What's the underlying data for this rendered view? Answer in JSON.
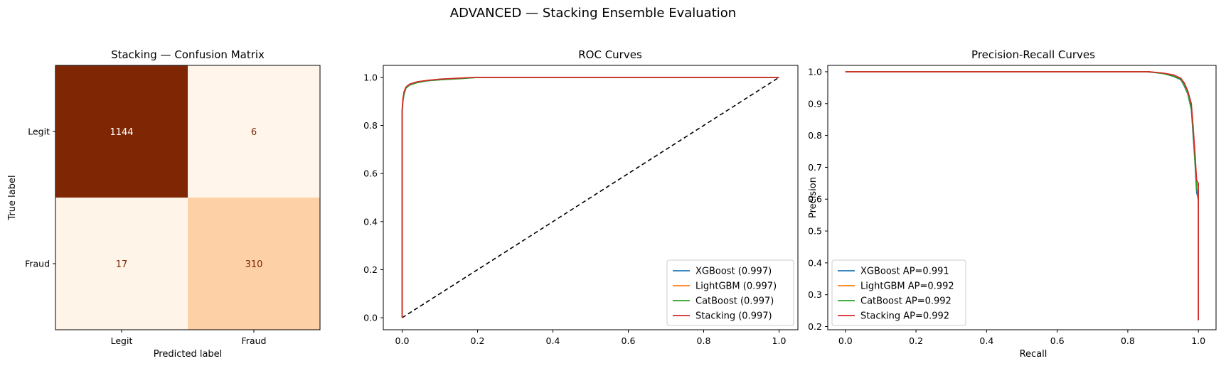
{
  "suptitle": "ADVANCED — Stacking Ensemble Evaluation",
  "chart_data": [
    {
      "type": "heatmap",
      "title": "Stacking — Confusion Matrix",
      "xlabel": "Predicted label",
      "ylabel": "True label",
      "x_categories": [
        "Legit",
        "Fraud"
      ],
      "y_categories": [
        "Legit",
        "Fraud"
      ],
      "values": [
        [
          1144,
          6
        ],
        [
          17,
          310
        ]
      ],
      "colormap": "Oranges",
      "colors": {
        "dark": "#7f2704",
        "light": "#fff5eb",
        "mid": "#fdcd9c",
        "text_dark_cell": "#ffffff",
        "text_light_cell": "#7f2704"
      }
    },
    {
      "type": "line",
      "title": "ROC Curves",
      "xlabel": "",
      "ylabel": "",
      "xlim": [
        -0.05,
        1.05
      ],
      "ylim": [
        -0.05,
        1.05
      ],
      "xticks": [
        0.0,
        0.2,
        0.4,
        0.6,
        0.8,
        1.0
      ],
      "yticks": [
        0.0,
        0.2,
        0.4,
        0.6,
        0.8,
        1.0
      ],
      "tick_labels": [
        "0.0",
        "0.2",
        "0.4",
        "0.6",
        "0.8",
        "1.0"
      ],
      "legend_position": "lower-right",
      "diagonal": {
        "x": [
          0,
          1
        ],
        "y": [
          0,
          1
        ],
        "style": "dashed",
        "color": "#000000"
      },
      "series": [
        {
          "name": "XGBoost (0.997)",
          "color": "#1f77b4",
          "x": [
            0,
            0,
            0.002,
            0.005,
            0.01,
            0.02,
            0.04,
            0.06,
            0.1,
            0.15,
            0.2,
            1.0
          ],
          "y": [
            0,
            0.85,
            0.9,
            0.93,
            0.955,
            0.97,
            0.98,
            0.985,
            0.99,
            0.995,
            1.0,
            1.0
          ]
        },
        {
          "name": "LightGBM (0.997)",
          "color": "#ff7f0e",
          "x": [
            0,
            0,
            0.002,
            0.005,
            0.01,
            0.02,
            0.04,
            0.07,
            0.1,
            0.16,
            0.2,
            1.0
          ],
          "y": [
            0,
            0.87,
            0.91,
            0.94,
            0.96,
            0.972,
            0.982,
            0.988,
            0.992,
            0.996,
            1.0,
            1.0
          ]
        },
        {
          "name": "CatBoost (0.997)",
          "color": "#2ca02c",
          "x": [
            0,
            0,
            0.002,
            0.005,
            0.01,
            0.02,
            0.04,
            0.07,
            0.1,
            0.16,
            0.2,
            1.0
          ],
          "y": [
            0,
            0.86,
            0.9,
            0.93,
            0.955,
            0.968,
            0.978,
            0.986,
            0.99,
            0.995,
            1.0,
            1.0
          ]
        },
        {
          "name": "Stacking (0.997)",
          "color": "#d62728",
          "x": [
            0,
            0,
            0.002,
            0.005,
            0.01,
            0.02,
            0.04,
            0.07,
            0.1,
            0.15,
            0.19,
            1.0
          ],
          "y": [
            0,
            0.86,
            0.91,
            0.94,
            0.96,
            0.972,
            0.982,
            0.988,
            0.993,
            0.997,
            1.0,
            1.0
          ]
        }
      ]
    },
    {
      "type": "line",
      "title": "Precision-Recall Curves",
      "xlabel": "Recall",
      "ylabel": "Precision",
      "xlim": [
        -0.05,
        1.05
      ],
      "ylim": [
        0.19,
        1.02
      ],
      "xticks": [
        0.0,
        0.2,
        0.4,
        0.6,
        0.8,
        1.0
      ],
      "xtick_labels": [
        "0.0",
        "0.2",
        "0.4",
        "0.6",
        "0.8",
        "1.0"
      ],
      "yticks": [
        0.2,
        0.3,
        0.4,
        0.5,
        0.6,
        0.7,
        0.8,
        0.9,
        1.0
      ],
      "ytick_labels": [
        "0.2",
        "0.3",
        "0.4",
        "0.5",
        "0.6",
        "0.7",
        "0.8",
        "0.9",
        "1.0"
      ],
      "legend_position": "lower-left",
      "series": [
        {
          "name": "XGBoost AP=0.991",
          "color": "#1f77b4",
          "x": [
            0.0,
            0.85,
            0.9,
            0.93,
            0.95,
            0.96,
            0.97,
            0.98,
            0.985,
            0.99,
            0.995,
            1.0,
            1.0
          ],
          "y": [
            1.0,
            1.0,
            0.995,
            0.985,
            0.975,
            0.955,
            0.93,
            0.88,
            0.8,
            0.72,
            0.62,
            0.6,
            0.22
          ]
        },
        {
          "name": "LightGBM AP=0.992",
          "color": "#ff7f0e",
          "x": [
            0.0,
            0.86,
            0.9,
            0.93,
            0.95,
            0.96,
            0.97,
            0.98,
            0.985,
            0.99,
            0.995,
            1.0,
            1.0
          ],
          "y": [
            1.0,
            1.0,
            0.995,
            0.988,
            0.978,
            0.96,
            0.935,
            0.89,
            0.82,
            0.74,
            0.65,
            0.64,
            0.22
          ]
        },
        {
          "name": "CatBoost AP=0.992",
          "color": "#2ca02c",
          "x": [
            0.0,
            0.86,
            0.9,
            0.93,
            0.95,
            0.96,
            0.97,
            0.98,
            0.985,
            0.99,
            0.995,
            1.0,
            1.0
          ],
          "y": [
            1.0,
            1.0,
            0.994,
            0.986,
            0.976,
            0.958,
            0.932,
            0.885,
            0.81,
            0.72,
            0.64,
            0.59,
            0.22
          ]
        },
        {
          "name": "Stacking AP=0.992",
          "color": "#d62728",
          "x": [
            0.0,
            0.86,
            0.9,
            0.93,
            0.95,
            0.96,
            0.97,
            0.98,
            0.985,
            0.99,
            0.995,
            1.0,
            1.0
          ],
          "y": [
            1.0,
            1.0,
            0.996,
            0.99,
            0.98,
            0.965,
            0.94,
            0.9,
            0.83,
            0.75,
            0.66,
            0.65,
            0.22
          ]
        }
      ]
    }
  ]
}
